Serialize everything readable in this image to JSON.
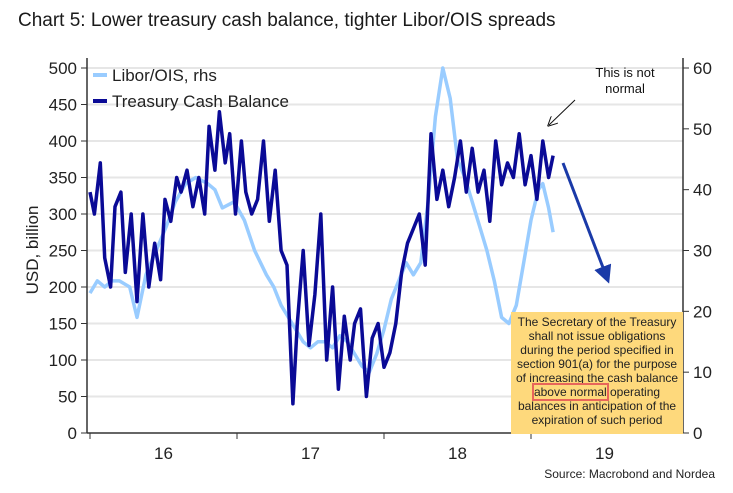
{
  "chart_data": {
    "type": "line",
    "title": "Chart 5: Lower treasury cash balance, tighter Libor/OIS spreads",
    "ylabel": "USD, billion",
    "ylim": [
      0,
      500
    ],
    "y2lim": [
      0,
      60
    ],
    "yticks": [
      0,
      50,
      100,
      150,
      200,
      250,
      300,
      350,
      400,
      450,
      500
    ],
    "y2ticks": [
      0,
      10,
      20,
      30,
      40,
      50,
      60
    ],
    "xlim": [
      2016.0,
      2020.0
    ],
    "xticks": [
      {
        "label": "16",
        "pos": 2016.5
      },
      {
        "label": "17",
        "pos": 2017.5
      },
      {
        "label": "18",
        "pos": 2018.5
      },
      {
        "label": "19",
        "pos": 2019.5
      }
    ],
    "grid": true,
    "legend": "top-left",
    "series": [
      {
        "name": "Libor/OIS, rhs",
        "axis": "right",
        "color": "#99ccff",
        "x": [
          2016.0,
          2016.05,
          2016.1,
          2016.15,
          2016.2,
          2016.27,
          2016.32,
          2016.38,
          2016.45,
          2016.52,
          2016.58,
          2016.65,
          2016.72,
          2016.8,
          2016.85,
          2016.9,
          2016.98,
          2017.05,
          2017.12,
          2017.2,
          2017.25,
          2017.3,
          2017.35,
          2017.4,
          2017.45,
          2017.5,
          2017.55,
          2017.6,
          2017.65,
          2017.7,
          2017.75,
          2017.8,
          2017.85,
          2017.9,
          2017.95,
          2018.0,
          2018.05,
          2018.1,
          2018.15,
          2018.2,
          2018.25,
          2018.3,
          2018.35,
          2018.4,
          2018.45,
          2018.5,
          2018.55,
          2018.6,
          2018.65,
          2018.7,
          2018.75,
          2018.8,
          2018.85,
          2018.9,
          2018.95,
          2019.0,
          2019.05,
          2019.08,
          2019.12,
          2019.15
        ],
        "y": [
          23,
          25,
          24,
          25,
          25,
          24,
          19,
          26,
          30,
          34,
          38,
          41,
          42,
          41,
          40,
          37,
          38,
          35,
          30,
          26,
          24,
          21,
          19,
          17,
          15,
          14,
          15,
          15,
          14,
          16,
          15,
          13,
          11,
          10,
          13,
          17,
          22,
          25,
          28,
          26,
          28,
          38,
          52,
          60,
          55,
          45,
          42,
          38,
          34,
          30,
          25,
          19,
          18,
          21,
          28,
          35,
          40,
          41,
          37,
          33
        ]
      },
      {
        "name": "Treasury Cash Balance",
        "axis": "left",
        "color": "#0a0a96",
        "x": [
          2016.0,
          2016.03,
          2016.07,
          2016.1,
          2016.14,
          2016.17,
          2016.21,
          2016.24,
          2016.28,
          2016.32,
          2016.36,
          2016.4,
          2016.44,
          2016.48,
          2016.51,
          2016.55,
          2016.59,
          2016.62,
          2016.66,
          2016.7,
          2016.74,
          2016.78,
          2016.81,
          2016.85,
          2016.88,
          2016.92,
          2016.95,
          2016.99,
          2017.03,
          2017.06,
          2017.1,
          2017.14,
          2017.18,
          2017.22,
          2017.26,
          2017.3,
          2017.34,
          2017.38,
          2017.41,
          2017.45,
          2017.49,
          2017.53,
          2017.57,
          2017.61,
          2017.65,
          2017.69,
          2017.73,
          2017.77,
          2017.8,
          2017.84,
          2017.88,
          2017.92,
          2017.96,
          2018.0,
          2018.04,
          2018.08,
          2018.12,
          2018.16,
          2018.2,
          2018.24,
          2018.28,
          2018.32,
          2018.36,
          2018.4,
          2018.44,
          2018.48,
          2018.52,
          2018.56,
          2018.6,
          2018.64,
          2018.68,
          2018.72,
          2018.76,
          2018.8,
          2018.84,
          2018.88,
          2018.92,
          2018.96,
          2019.0,
          2019.04,
          2019.08,
          2019.12,
          2019.15
        ],
        "y": [
          330,
          300,
          370,
          240,
          200,
          310,
          330,
          220,
          300,
          180,
          300,
          200,
          260,
          210,
          320,
          290,
          350,
          330,
          360,
          310,
          350,
          300,
          420,
          360,
          440,
          370,
          410,
          300,
          400,
          330,
          300,
          320,
          400,
          290,
          360,
          250,
          230,
          40,
          150,
          250,
          120,
          190,
          300,
          100,
          200,
          60,
          160,
          100,
          150,
          170,
          50,
          130,
          150,
          90,
          110,
          150,
          220,
          260,
          280,
          300,
          230,
          410,
          320,
          360,
          310,
          350,
          400,
          330,
          390,
          330,
          360,
          290,
          400,
          340,
          370,
          350,
          410,
          340,
          380,
          320,
          400,
          350,
          380
        ]
      }
    ]
  },
  "annotations": {
    "arrow_label": "This is not normal",
    "box_before": "The Secretary of the Treasury shall not issue obligations during the period specified in section 901(a) for the purpose of increasing the cash balance ",
    "box_highlight": "above normal",
    "box_after": " operating balances in anticipation of the expiration of such period"
  },
  "source": "Source: Macrobond and Nordea"
}
